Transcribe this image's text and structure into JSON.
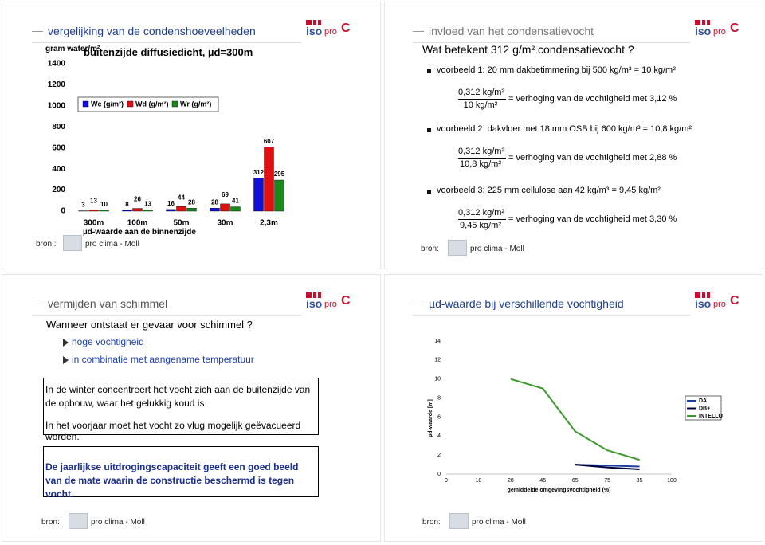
{
  "logo": {
    "iso": "iso",
    "pro": "pro",
    "c": "C"
  },
  "slide1": {
    "title": "vergelijking van de condenshoeveelheden",
    "source_label": "bron :",
    "source_name": "pro clima - Moll",
    "chart_data": {
      "type": "bar",
      "title": "buitenzijde diffusiedicht, µd=300m",
      "y_label": "gram water/m²",
      "x_label": "µd-waarde aan de binnenzijde",
      "categories": [
        "300m",
        "100m",
        "50m",
        "30m",
        "2,3m"
      ],
      "series": [
        {
          "name": "Wc (g/m²)",
          "color": "#1010d8",
          "values": [
            3,
            8,
            16,
            28,
            312
          ]
        },
        {
          "name": "Wd (g/m²)",
          "color": "#e01010",
          "values": [
            13,
            26,
            44,
            69,
            607
          ]
        },
        {
          "name": "Wr (g/m²)",
          "color": "#1a8a1a",
          "values": [
            10,
            13,
            28,
            41,
            295
          ]
        }
      ],
      "ylim": [
        0,
        1400
      ],
      "yticks": [
        0,
        200,
        400,
        600,
        800,
        1000,
        1200,
        1400
      ],
      "grid": false
    }
  },
  "slide2": {
    "title": "invloed van het condensatievocht",
    "question": "Wat betekent 312 g/m² condensatievocht ?",
    "examples": [
      {
        "text": "voorbeeld 1: 20 mm dakbetimmering bij 500 kg/m³ = 10 kg/m²",
        "numerator": "0,312 kg/m²",
        "denominator": "10 kg/m²",
        "result": "= verhoging van de vochtigheid met 3,12 %"
      },
      {
        "text": "voorbeeld 2: dakvloer met 18 mm OSB bij 600 kg/m³ = 10,8 kg/m²",
        "numerator": "0,312 kg/m²",
        "denominator": "10,8 kg/m²",
        "result": "= verhoging van de vochtigheid met 2,88 %"
      },
      {
        "text": "voorbeeld 3: 225 mm cellulose aan 42 kg/m³ = 9,45 kg/m²",
        "numerator": "0,312 kg/m²",
        "denominator": "9,45 kg/m²",
        "result": "= verhoging van de vochtigheid met 3,30 %"
      }
    ],
    "source_label": "bron:",
    "source_name": "pro clima - Moll"
  },
  "slide3": {
    "title": "vermijden van schimmel",
    "question": "Wanneer ontstaat er gevaar voor schimmel ?",
    "bullets": [
      "hoge vochtigheid",
      "in combinatie met aangename temperatuur"
    ],
    "box1": [
      "In de winter concentreert het vocht zich aan de buitenzijde van de opbouw, waar het gelukkig koud is.",
      "In het voorjaar moet het vocht zo vlug mogelijk geëvacueerd worden."
    ],
    "box2": "De jaarlijkse uitdrogingscapaciteit geeft een goed beeld van de mate waarin de constructie beschermd is tegen vocht.",
    "source_label": "bron:",
    "source_name": "pro clima - Moll"
  },
  "slide4": {
    "title": "µd-waarde bij verschillende vochtigheid",
    "source_label": "bron:",
    "source_name": "pro clima - Moll",
    "chart_data": {
      "type": "line",
      "x_label": "gemiddelde omgevingsvochtigheid (%)",
      "y_label": "µd-waarde [m]",
      "categories": [
        "0",
        "18",
        "28",
        "45",
        "65",
        "75",
        "85",
        "100"
      ],
      "series": [
        {
          "name": "DA",
          "color": "#1f3f9f",
          "values": [
            null,
            null,
            null,
            null,
            1.0,
            0.9,
            0.8,
            null
          ]
        },
        {
          "name": "DB+",
          "color": "#000040",
          "values": [
            null,
            null,
            null,
            null,
            1.0,
            0.7,
            0.5,
            null
          ]
        },
        {
          "name": "INTELLO",
          "color": "#3a9a2a",
          "values": [
            null,
            null,
            10,
            9,
            4.5,
            2.5,
            1.5,
            null
          ]
        }
      ],
      "ylim": [
        0,
        14
      ],
      "yticks": [
        0,
        2,
        4,
        6,
        8,
        10,
        12,
        14
      ],
      "grid": false
    }
  }
}
